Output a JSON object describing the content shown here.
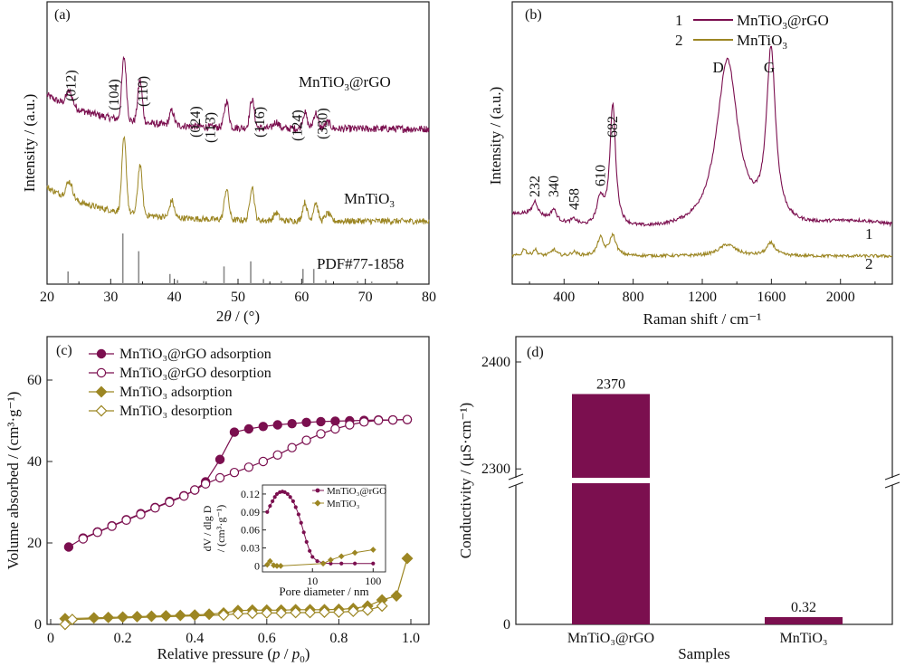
{
  "colors": {
    "rgo": "#7b0f4f",
    "mto": "#9c8623",
    "stick": "#8a8a8a",
    "axis": "#222222"
  },
  "chart_data": [
    {
      "panel": "(a)",
      "type": "line",
      "xlabel_italic": "θ",
      "xlabel_pre": "2",
      "xlabel_post": " / (°)",
      "ylabel": "Intensity / (a.u.)",
      "xlim": [
        20,
        80
      ],
      "xticks": [
        20,
        30,
        40,
        50,
        60,
        70,
        80
      ],
      "peaks": [
        {
          "x": 23.5,
          "h": 0.55,
          "w": 0.5
        },
        {
          "x": 32.1,
          "h": 2.4,
          "w": 0.35
        },
        {
          "x": 34.6,
          "h": 1.6,
          "w": 0.35
        },
        {
          "x": 39.6,
          "h": 0.55,
          "w": 0.35
        },
        {
          "x": 48.2,
          "h": 1.0,
          "w": 0.35
        },
        {
          "x": 52.2,
          "h": 1.1,
          "w": 0.35
        },
        {
          "x": 56.0,
          "h": 0.25,
          "w": 0.4
        },
        {
          "x": 60.5,
          "h": 0.6,
          "w": 0.35
        },
        {
          "x": 62.2,
          "h": 0.6,
          "w": 0.35
        },
        {
          "x": 64.1,
          "h": 0.25,
          "w": 0.4
        }
      ],
      "series": [
        {
          "name": "MnTiO₃@rGO",
          "name_base": "MnTiO",
          "name_sub": "3",
          "name_tail": "@rGO",
          "offset": 3.6,
          "scale": 0.85,
          "noise": 0.12
        },
        {
          "name": "MnTiO₃",
          "name_base": "MnTiO",
          "name_sub": "3",
          "name_tail": "",
          "offset": 0.6,
          "scale": 1.0,
          "noise": 0.1
        }
      ],
      "annotations": [
        {
          "text": "(012)",
          "x": 24.5
        },
        {
          "text": "(104)",
          "x": 31.2
        },
        {
          "text": "(110)",
          "x": 35.8
        },
        {
          "text": "(024)",
          "x": 44.0
        },
        {
          "text": "(113̄)",
          "x": 46.4
        },
        {
          "text": "(116̄)",
          "x": 54.1
        },
        {
          "text": "(124̄)",
          "x": 60.0
        },
        {
          "text": "(330)",
          "x": 64.0
        }
      ],
      "reference_label": "PDF#77-1858",
      "reference_sticks": [
        {
          "x": 23.3,
          "h": 0.25
        },
        {
          "x": 31.9,
          "h": 1.0
        },
        {
          "x": 34.4,
          "h": 0.65
        },
        {
          "x": 39.3,
          "h": 0.2
        },
        {
          "x": 40.5,
          "h": 0.08
        },
        {
          "x": 44.6,
          "h": 0.06
        },
        {
          "x": 47.8,
          "h": 0.35
        },
        {
          "x": 52.0,
          "h": 0.45
        },
        {
          "x": 54.0,
          "h": 0.1
        },
        {
          "x": 56.8,
          "h": 0.06
        },
        {
          "x": 60.2,
          "h": 0.3
        },
        {
          "x": 61.9,
          "h": 0.3
        },
        {
          "x": 63.8,
          "h": 0.08
        },
        {
          "x": 68.8,
          "h": 0.06
        },
        {
          "x": 71.0,
          "h": 0.05
        }
      ]
    },
    {
      "panel": "(b)",
      "type": "line",
      "xlabel": "Raman shift / cm⁻¹",
      "ylabel": "Intensity / (a.u.)",
      "xlim": [
        100,
        2300
      ],
      "xticks": [
        400,
        800,
        1200,
        1600,
        2000
      ],
      "legend": [
        {
          "num": "1",
          "base": "MnTiO",
          "sub": "3",
          "tail": "@rGO"
        },
        {
          "num": "2",
          "base": "MnTiO",
          "sub": "3",
          "tail": ""
        }
      ],
      "peak_labels": [
        {
          "text": "232",
          "x": 232
        },
        {
          "text": "340",
          "x": 340
        },
        {
          "text": "458",
          "x": 458
        },
        {
          "text": "610",
          "x": 610
        },
        {
          "text": "682",
          "x": 682
        },
        {
          "text": "D",
          "x": 1345
        },
        {
          "text": "G",
          "x": 1598
        }
      ],
      "curve_labels": [
        "1",
        "2"
      ],
      "rgo_peaks": [
        {
          "x": 232,
          "h": 0.5,
          "w": 18
        },
        {
          "x": 340,
          "h": 0.4,
          "w": 18
        },
        {
          "x": 458,
          "h": 0.2,
          "w": 25
        },
        {
          "x": 610,
          "h": 1.0,
          "w": 25
        },
        {
          "x": 682,
          "h": 4.5,
          "w": 20
        },
        {
          "x": 1345,
          "h": 6.2,
          "w": 75
        },
        {
          "x": 1598,
          "h": 6.3,
          "w": 32
        }
      ],
      "mto_peaks": [
        {
          "x": 170,
          "h": 0.3,
          "w": 12
        },
        {
          "x": 232,
          "h": 0.25,
          "w": 15
        },
        {
          "x": 340,
          "h": 0.25,
          "w": 18
        },
        {
          "x": 458,
          "h": 0.15,
          "w": 20
        },
        {
          "x": 610,
          "h": 0.7,
          "w": 20
        },
        {
          "x": 682,
          "h": 0.8,
          "w": 22
        },
        {
          "x": 1345,
          "h": 0.45,
          "w": 60
        },
        {
          "x": 1598,
          "h": 0.5,
          "w": 30
        }
      ]
    },
    {
      "panel": "(c)",
      "type": "line",
      "xlabel_pre": "Relative pressure (",
      "xlabel_mid": " / ",
      "xlabel_post": ")",
      "ylabel": "Volume absorbed / (cm³·g⁻¹)",
      "xlim": [
        0,
        1.05
      ],
      "ylim": [
        0,
        68
      ],
      "xticks": [
        0,
        0.2,
        0.4,
        0.6,
        0.8,
        1.0
      ],
      "yticks": [
        0,
        20,
        40,
        60
      ],
      "legend": [
        {
          "label": "MnTiO₃@rGO adsorption",
          "marker": "circle",
          "fill": true
        },
        {
          "label": "MnTiO₃@rGO desorption",
          "marker": "circle",
          "fill": false
        },
        {
          "label": "MnTiO₃ adsorption",
          "marker": "diamond",
          "fill": true
        },
        {
          "label": "MnTiO₃ desorption",
          "marker": "diamond",
          "fill": false
        }
      ],
      "series": [
        {
          "name": "MnTiO₃@rGO adsorption",
          "x": [
            0.05,
            0.09,
            0.13,
            0.17,
            0.21,
            0.25,
            0.29,
            0.33,
            0.37,
            0.4,
            0.43,
            0.47,
            0.51,
            0.55,
            0.59,
            0.63,
            0.67,
            0.71,
            0.75,
            0.79,
            0.83,
            0.87,
            0.91,
            0.95,
            0.99
          ],
          "y": [
            19,
            21.2,
            22.7,
            24.2,
            25.7,
            27.2,
            28.7,
            30.2,
            31.6,
            33.0,
            35.0,
            40.5,
            47.2,
            48.0,
            48.6,
            49.0,
            49.3,
            49.6,
            49.8,
            49.9,
            50.0,
            50.1,
            50.2,
            50.2,
            50.3
          ]
        },
        {
          "name": "MnTiO₃@rGO desorption",
          "x": [
            0.09,
            0.13,
            0.17,
            0.21,
            0.25,
            0.29,
            0.33,
            0.37,
            0.4,
            0.43,
            0.47,
            0.51,
            0.55,
            0.59,
            0.63,
            0.67,
            0.71,
            0.75,
            0.79,
            0.83,
            0.87,
            0.91,
            0.95,
            0.99
          ],
          "y": [
            21.0,
            22.6,
            24.1,
            25.6,
            27.0,
            28.6,
            30.0,
            31.5,
            33.0,
            34.5,
            36.0,
            37.3,
            38.6,
            40.0,
            41.6,
            43.4,
            45.2,
            46.8,
            48.0,
            49.0,
            49.7,
            50.1,
            50.2,
            50.3
          ]
        },
        {
          "name": "MnTiO₃ adsorption",
          "x": [
            0.04,
            0.12,
            0.16,
            0.2,
            0.24,
            0.28,
            0.32,
            0.36,
            0.4,
            0.44,
            0.48,
            0.52,
            0.56,
            0.6,
            0.64,
            0.68,
            0.72,
            0.76,
            0.8,
            0.84,
            0.88,
            0.92,
            0.96,
            0.99
          ],
          "y": [
            1.4,
            1.6,
            1.7,
            1.8,
            1.9,
            2.0,
            2.1,
            2.2,
            2.3,
            2.5,
            2.8,
            3.4,
            3.5,
            3.5,
            3.5,
            3.6,
            3.6,
            3.6,
            3.7,
            3.9,
            4.5,
            6.0,
            7.0,
            16.2
          ]
        },
        {
          "name": "MnTiO₃ desorption",
          "x": [
            0.04,
            0.06,
            0.48,
            0.52,
            0.56,
            0.6,
            0.64,
            0.68,
            0.72,
            0.76,
            0.8,
            0.84,
            0.88,
            0.92
          ],
          "y": [
            0.0,
            1.2,
            2.3,
            2.6,
            2.7,
            2.8,
            2.8,
            2.9,
            2.9,
            3.0,
            3.0,
            3.2,
            3.5,
            4.5
          ]
        }
      ],
      "inset": {
        "xlabel": "Pore diameter / nm",
        "ylabel_parts": [
          "dV / dlg D",
          "/ (cm³·g⁻¹)"
        ],
        "xticks": [
          10,
          100
        ],
        "yticks": [
          0,
          0.03,
          0.06,
          0.09,
          0.12
        ],
        "ylim": [
          -0.01,
          0.135
        ],
        "xlim": [
          1.5,
          160
        ],
        "legend": [
          "MnTiO₃@rGO",
          "MnTiO₃"
        ],
        "rgo": {
          "x": [
            1.8,
            2.0,
            2.2,
            2.4,
            2.6,
            2.9,
            3.2,
            3.5,
            3.9,
            4.3,
            4.8,
            5.3,
            5.9,
            6.5,
            7.2,
            8.0,
            9.0,
            10,
            12,
            15,
            20,
            30,
            50,
            100
          ],
          "y": [
            0.09,
            0.1,
            0.108,
            0.115,
            0.12,
            0.123,
            0.124,
            0.123,
            0.12,
            0.115,
            0.108,
            0.098,
            0.086,
            0.072,
            0.056,
            0.04,
            0.025,
            0.015,
            0.008,
            0.005,
            0.004,
            0.004,
            0.004,
            0.004
          ]
        },
        "mto": {
          "x": [
            1.8,
            2.0,
            2.3,
            2.6,
            3.0,
            15,
            20,
            30,
            50,
            100
          ],
          "y": [
            0.002,
            0.008,
            0.001,
            0.0,
            0.0,
            0.004,
            0.01,
            0.016,
            0.022,
            0.027
          ]
        }
      }
    },
    {
      "panel": "(d)",
      "type": "bar",
      "xlabel": "Samples",
      "ylabel": "Conductivity / (μS·cm⁻¹)",
      "categories": [
        "MnTiO₃@rGO",
        "MnTiO₃"
      ],
      "values": [
        2370,
        0.32
      ],
      "value_labels": [
        "2370",
        "0.32"
      ],
      "yticks": [
        0,
        2300,
        2400
      ],
      "axis_break": [
        1,
        2290
      ]
    }
  ]
}
